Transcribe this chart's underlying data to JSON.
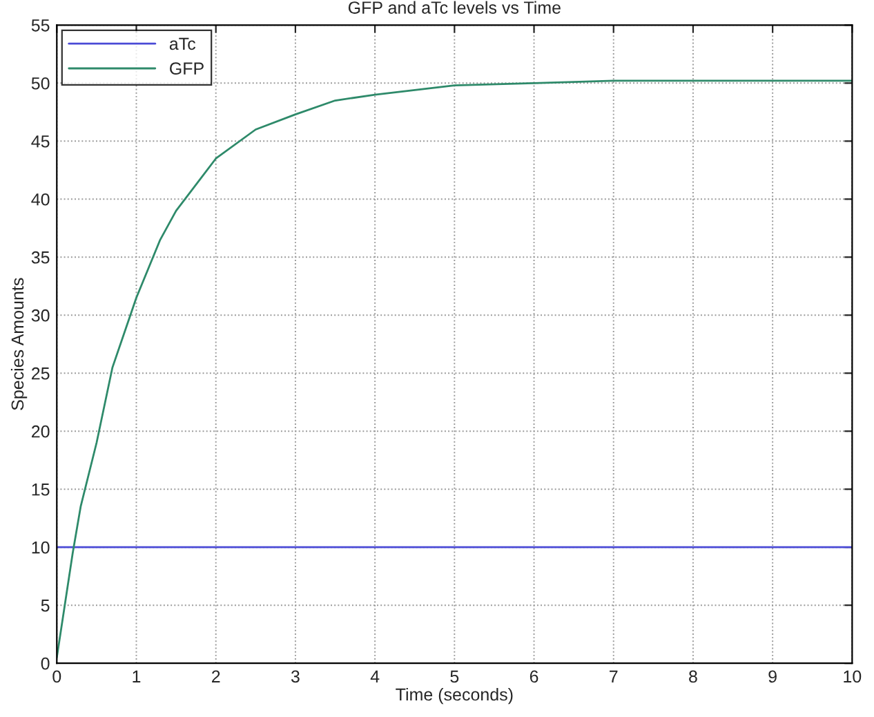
{
  "chart_data": {
    "type": "line",
    "title": "GFP and aTc levels vs Time",
    "xlabel": "Time (seconds)",
    "ylabel": "Species Amounts",
    "series": [
      {
        "name": "aTc",
        "color": "#4a4ad6",
        "x": [
          0,
          2,
          4,
          6,
          8,
          10
        ],
        "values": [
          10,
          10,
          10,
          10,
          10,
          10
        ]
      },
      {
        "name": "GFP",
        "color": "#2e8a6a",
        "x": [
          0,
          0.1,
          0.2,
          0.3,
          0.5,
          0.7,
          1,
          1.3,
          1.5,
          2,
          2.5,
          3,
          3.5,
          4,
          5,
          6,
          7,
          8,
          10
        ],
        "values": [
          0.5,
          5,
          9.5,
          13.5,
          19,
          25.5,
          31.5,
          36.5,
          39,
          43.5,
          46,
          47.3,
          48.5,
          49,
          49.8,
          50,
          50.2,
          50.2,
          50.2
        ]
      }
    ],
    "xlim": [
      0,
      10
    ],
    "ylim": [
      0,
      55
    ],
    "xticks": [
      0,
      1,
      2,
      3,
      4,
      5,
      6,
      7,
      8,
      9,
      10
    ],
    "yticks": [
      0,
      5,
      10,
      15,
      20,
      25,
      30,
      35,
      40,
      45,
      50,
      55
    ],
    "grid": true,
    "legend": "top left",
    "line_style": "solid",
    "marker": "none"
  }
}
